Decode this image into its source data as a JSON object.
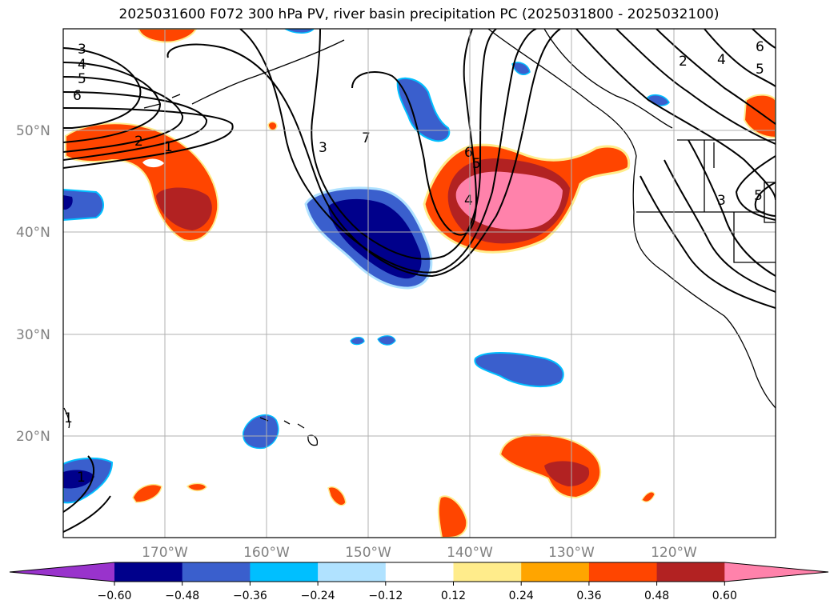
{
  "title": "2025031600 F072 300 hPa PV, river basin precipitation PC (2025031800 - 2025032100)",
  "map": {
    "lon_range": [
      -180,
      -110
    ],
    "lat_range": [
      10,
      60
    ],
    "lat_ticks": [
      "20°N",
      "30°N",
      "40°N",
      "50°N"
    ],
    "lon_ticks": [
      "170°W",
      "160°W",
      "150°W",
      "140°W",
      "130°W",
      "120°W"
    ],
    "contour_labels": [
      "3",
      "4",
      "5",
      "6",
      "2",
      "1",
      "3",
      "7",
      "6",
      "5",
      "4",
      "2",
      "4",
      "6",
      "5",
      "3",
      "5",
      "1",
      "1"
    ]
  },
  "colorbar": {
    "ticks": [
      "−0.60",
      "−0.48",
      "−0.36",
      "−0.24",
      "−0.12",
      "0.12",
      "0.24",
      "0.36",
      "0.48",
      "0.60"
    ],
    "colors": [
      "#9933cc",
      "#00008b",
      "#3a5fcd",
      "#00bfff",
      "#b0e2ff",
      "#ffffff",
      "#ffec8b",
      "#ffa500",
      "#ff4500",
      "#b22222",
      "#ff82ab"
    ]
  }
}
